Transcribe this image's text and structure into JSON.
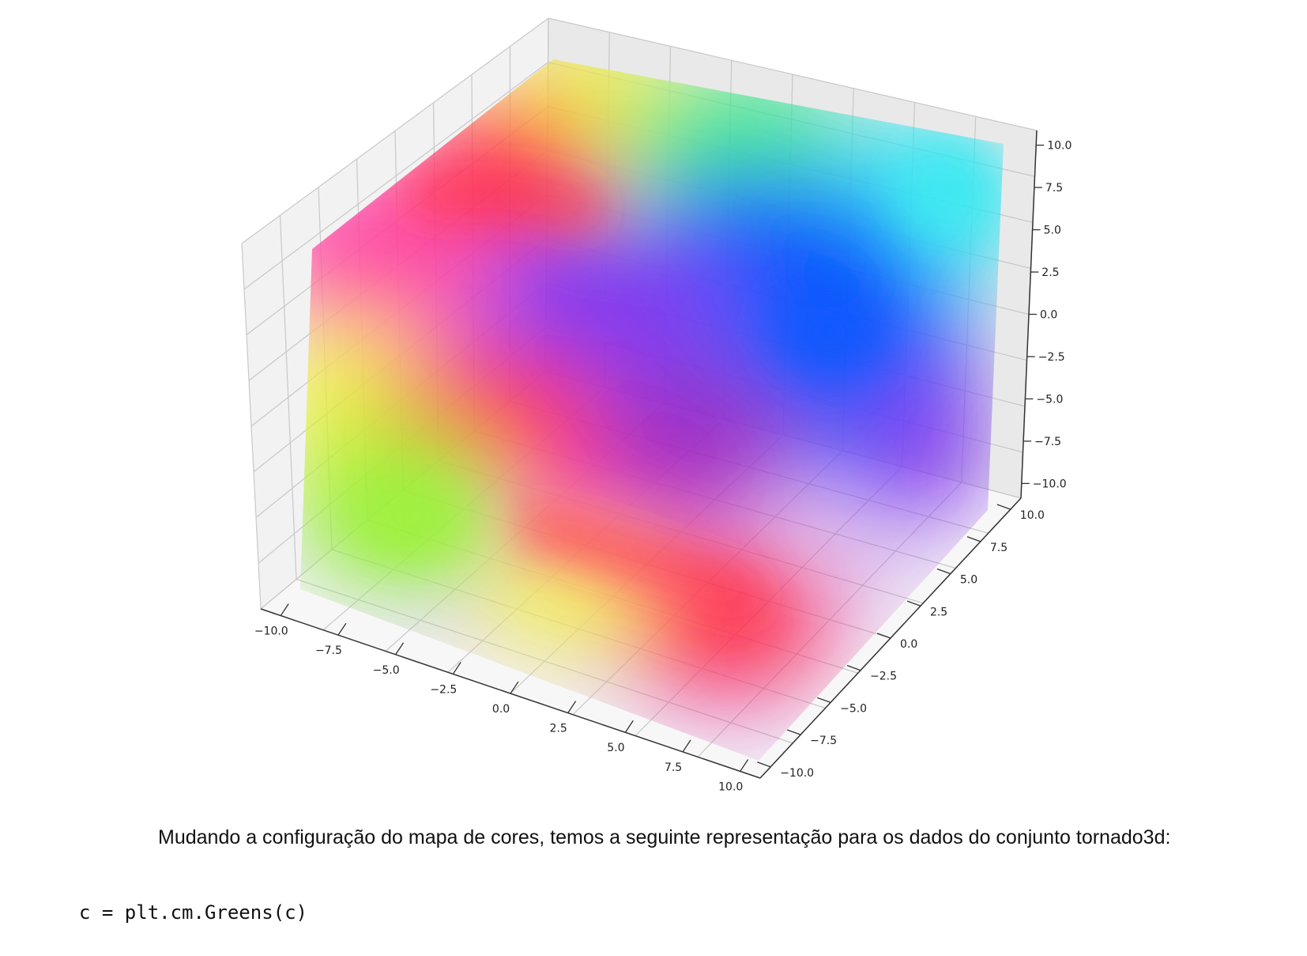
{
  "chart_data": {
    "type": "scatter",
    "projection": "3d",
    "title": "",
    "xlabel": "",
    "ylabel": "",
    "zlabel": "",
    "xlim": [
      -10,
      10
    ],
    "ylim": [
      -10,
      10
    ],
    "zlim": [
      -10,
      10
    ],
    "grid": true,
    "legend": false,
    "x_ticks": [
      "−10.0",
      "−7.5",
      "−5.0",
      "−2.5",
      "0.0",
      "2.5",
      "5.0",
      "7.5",
      "10.0"
    ],
    "y_ticks": [
      "−10.0",
      "−7.5",
      "−5.0",
      "−2.5",
      "0.0",
      "2.5",
      "5.0",
      "7.5",
      "10.0"
    ],
    "z_ticks": [
      "−10.0",
      "−7.5",
      "−5.0",
      "−2.5",
      "0.0",
      "2.5",
      "5.0",
      "7.5",
      "10.0"
    ],
    "colormap": "hsv",
    "colors": {
      "red": "#ff2a3c",
      "magenta": "#ff40a0",
      "yellow": "#f2f23a",
      "lime": "#9af030",
      "green": "#3ee88a",
      "cyan": "#30e8f2",
      "blue": "#0050ff",
      "violet": "#7a30f0",
      "purple": "#9a20c0"
    }
  },
  "text": {
    "paragraph": "Mudando a configuração do mapa de cores, temos a seguinte representação para os dados do conjunto tornado3d:",
    "code": "c = plt.cm.Greens(c)"
  }
}
